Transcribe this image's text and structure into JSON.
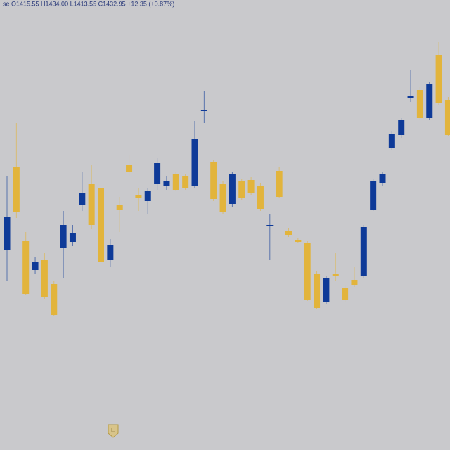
{
  "chart_data": {
    "type": "candlestick",
    "title": "se O1415.55 H1434.00 L1413.55 C1432.95 +12.35 (+0.87%)",
    "open": [
      1342,
      1401,
      1348.5,
      1328,
      1335,
      1318,
      1344,
      1348,
      1374,
      1389,
      1386.5,
      1335,
      1374,
      1402.5,
      1381,
      1377,
      1389,
      1388,
      1396,
      1395,
      1388,
      1441,
      1405,
      1389,
      1375,
      1391,
      1392,
      1388,
      1359,
      1398.5,
      1356,
      1349.5,
      1347,
      1325,
      1305,
      1325,
      1315.5,
      1321,
      1323.5,
      1371,
      1390,
      1415,
      1424,
      1450,
      1456,
      1436,
      1481,
      1449
    ],
    "high": [
      1395,
      1432.5,
      1355,
      1337.5,
      1340,
      1320,
      1370,
      1360,
      1397.5,
      1402.5,
      1390,
      1350,
      1380,
      1410,
      1386,
      1386,
      1407.5,
      1395,
      1397.5,
      1396,
      1434,
      1455,
      1406,
      1391,
      1398,
      1392.5,
      1394,
      1390,
      1367.5,
      1401,
      1358,
      1350.5,
      1348.5,
      1327,
      1324,
      1340,
      1317.5,
      1330,
      1360,
      1393,
      1398,
      1427,
      1436,
      1470,
      1458,
      1462,
      1490,
      1451
    ],
    "low": [
      1320,
      1365,
      1310,
      1325,
      1307.5,
      1295,
      1322.5,
      1345,
      1370,
      1357.5,
      1322.5,
      1330,
      1355,
      1395,
      1370,
      1367.5,
      1385,
      1385,
      1384,
      1385,
      1386,
      1432.5,
      1377,
      1367.5,
      1372.5,
      1378,
      1381,
      1370,
      1335,
      1379,
      1351.5,
      1347,
      1306,
      1300,
      1303.5,
      1320,
      1305,
      1316,
      1322,
      1370,
      1388,
      1413,
      1422,
      1447.5,
      1435,
      1435,
      1445,
      1423
    ],
    "close": [
      1366,
      1369,
      1311,
      1334,
      1309,
      1296,
      1360,
      1354,
      1383,
      1360,
      1334,
      1346,
      1371,
      1398,
      1379.5,
      1384,
      1404,
      1391,
      1385,
      1386,
      1421.5,
      1442,
      1378.5,
      1369,
      1396,
      1379.5,
      1382.5,
      1371.5,
      1360,
      1380,
      1353,
      1348,
      1307,
      1301,
      1322,
      1323.5,
      1306.5,
      1317.5,
      1358.5,
      1391,
      1396,
      1425,
      1434.5,
      1452,
      1436,
      1460,
      1447,
      1424
    ],
    "up_color": "#0e3a98",
    "down_color": "#e2b43c",
    "ylim": [
      1200,
      1520
    ],
    "marker_label": "E"
  }
}
